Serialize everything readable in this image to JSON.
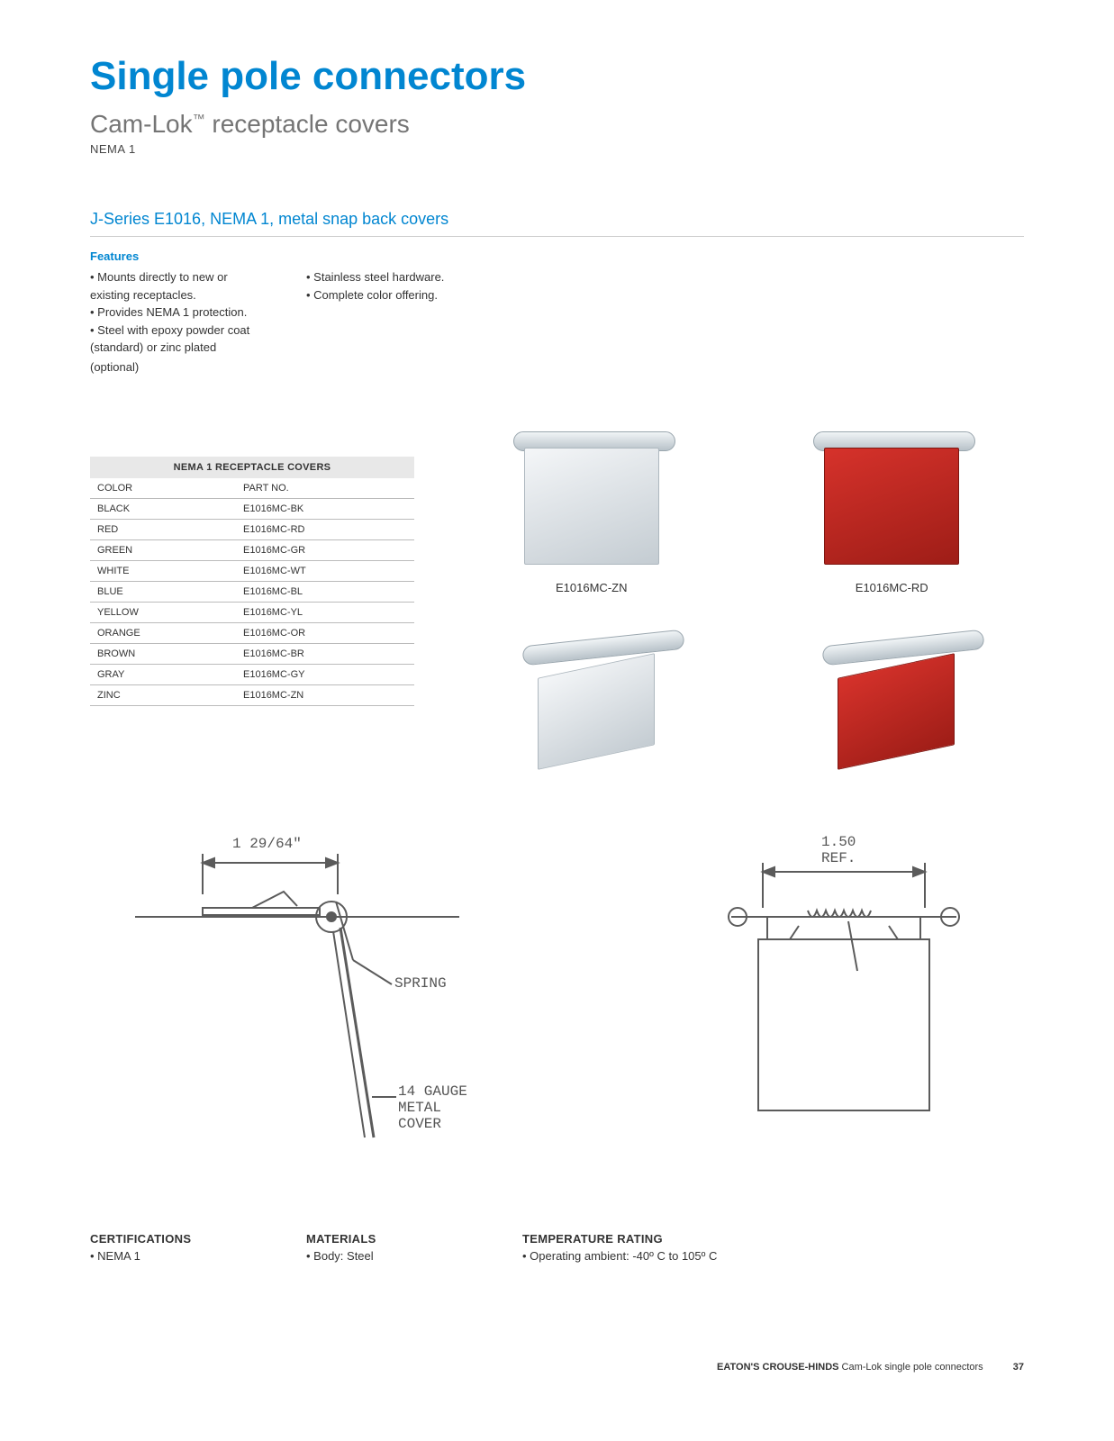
{
  "header": {
    "title": "Single pole connectors",
    "subtitle_prefix": "Cam-Lok",
    "subtitle_tm": "™",
    "subtitle_suffix": " receptacle covers",
    "nema": "NEMA 1"
  },
  "section": {
    "heading": "J-Series E1016, NEMA 1, metal snap back covers",
    "features_label": "Features",
    "features_col1": [
      "Mounts directly to new or existing receptacles.",
      "Provides NEMA 1 protection.",
      "Steel with epoxy powder coat (standard) or zinc plated"
    ],
    "features_col1_trailing": "(optional)",
    "features_col2": [
      "Stainless steel hardware.",
      "Complete color offering."
    ]
  },
  "parts_table": {
    "title": "NEMA 1 RECEPTACLE COVERS",
    "columns": [
      "COLOR",
      "PART NO."
    ],
    "rows": [
      [
        "BLACK",
        "E1016MC-BK"
      ],
      [
        "RED",
        "E1016MC-RD"
      ],
      [
        "GREEN",
        "E1016MC-GR"
      ],
      [
        "WHITE",
        "E1016MC-WT"
      ],
      [
        "BLUE",
        "E1016MC-BL"
      ],
      [
        "YELLOW",
        "E1016MC-YL"
      ],
      [
        "ORANGE",
        "E1016MC-OR"
      ],
      [
        "BROWN",
        "E1016MC-BR"
      ],
      [
        "GRAY",
        "E1016MC-GY"
      ],
      [
        "ZINC",
        "E1016MC-ZN"
      ]
    ]
  },
  "photos": {
    "top_left": {
      "caption": "E1016MC-ZN",
      "color": "#c4ccd2",
      "style": "zinc"
    },
    "top_right": {
      "caption": "E1016MC-RD",
      "color": "#b3241d",
      "style": "red"
    },
    "bottom_left": {
      "caption": "",
      "color": "#c4ccd2",
      "style": "zinc"
    },
    "bottom_right": {
      "caption": "",
      "color": "#b3241d",
      "style": "red"
    }
  },
  "diagrams": {
    "left": {
      "width_label": "1 29/64\"",
      "callout1": "SPRING",
      "callout2": "14 GAUGE\nMETAL\nCOVER",
      "stroke": "#5b5b5b"
    },
    "right": {
      "width_label": "1.50\nREF.",
      "stroke": "#5b5b5b"
    }
  },
  "specs": {
    "cert_title": "CERTIFICATIONS",
    "cert_items": [
      "NEMA 1"
    ],
    "mat_title": "MATERIALS",
    "mat_items": [
      "Body: Steel"
    ],
    "temp_title": "TEMPERATURE RATING",
    "temp_items": [
      "Operating ambient: -40º C to 105º C"
    ]
  },
  "footer": {
    "brand": "EATON'S CROUSE-HINDS",
    "text": " Cam-Lok single pole connectors",
    "page": "37"
  }
}
